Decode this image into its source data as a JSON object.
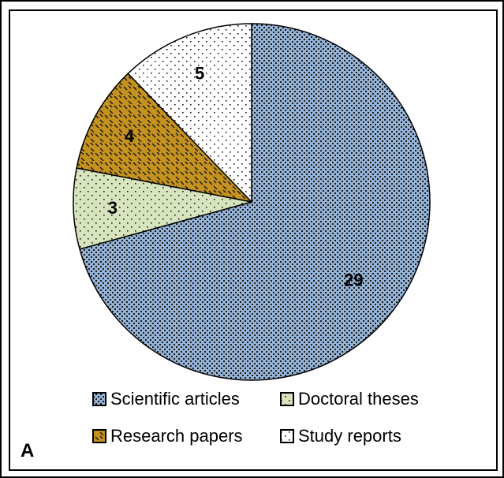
{
  "panel_label": "A",
  "chart_data": {
    "type": "pie",
    "title": "",
    "slices": [
      {
        "label": "Scientific articles",
        "value": 29,
        "color": "#95b3d7",
        "pattern": "small-dots"
      },
      {
        "label": "Doctoral theses",
        "value": 3,
        "color": "#d7e4bd",
        "pattern": "sparse-dots"
      },
      {
        "label": "Research papers",
        "value": 4,
        "color": "#c5921e",
        "pattern": "diagonal-dashes"
      },
      {
        "label": "Study reports",
        "value": 5,
        "color": "#ffffff",
        "pattern": "sparse-dots"
      }
    ],
    "legend": {
      "placement": "bottom",
      "columns": 2,
      "order": [
        "Scientific articles",
        "Doctoral theses",
        "Research papers",
        "Study reports"
      ]
    },
    "data_labels": true,
    "start": "top",
    "direction": "clockwise"
  }
}
